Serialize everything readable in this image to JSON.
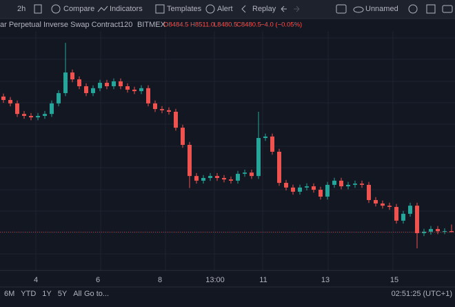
{
  "toolbar": {
    "interval": "2h",
    "compare": "Compare",
    "indicators": "Indicators",
    "templates": "Templates",
    "alert": "Alert",
    "replay": "Replay",
    "layout": "Unnamed"
  },
  "chart_data": {
    "type": "candlestick",
    "title": "ar Perpetual Inverse Swap Contract",
    "interval": "120",
    "exchange": "BITMEX",
    "ohlc_labels": {
      "open": "O8484.5",
      "high": "H8511.0",
      "low": "L8480.5",
      "close": "C8480.5",
      "change": "−4.0 (−0.05%)"
    },
    "categories": [
      null,
      null,
      null,
      null,
      null,
      "4",
      null,
      null,
      null,
      null,
      null,
      null,
      null,
      null,
      "6",
      null,
      null,
      null,
      null,
      null,
      null,
      null,
      null,
      "8",
      null,
      null,
      null,
      null,
      null,
      null,
      null,
      "13:00",
      null,
      null,
      null,
      null,
      null,
      null,
      "11",
      null,
      null,
      null,
      null,
      null,
      null,
      null,
      null,
      "13",
      null,
      null,
      null,
      null,
      null,
      null,
      null,
      null,
      null,
      "15",
      null,
      null,
      null,
      null,
      null,
      null,
      null,
      null
    ],
    "open": [
      9033,
      9019,
      9005,
      8962,
      8954,
      8948,
      8954,
      8962,
      9005,
      9047,
      9131,
      9103,
      9075,
      9047,
      9067,
      9089,
      9075,
      9095,
      9075,
      9061,
      9055,
      9067,
      9005,
      8982,
      8977,
      8971,
      8906,
      8836,
      8709,
      8690,
      8701,
      8709,
      8701,
      8695,
      8690,
      8718,
      8723,
      8709,
      8864,
      8870,
      8808,
      8681,
      8662,
      8645,
      8662,
      8667,
      8653,
      8625,
      8673,
      8690,
      8667,
      8673,
      8678,
      8673,
      8611,
      8597,
      8588,
      8583,
      8527,
      8555,
      8588,
      8476,
      8482,
      8493,
      8484,
      8484.5
    ],
    "high": [
      9045,
      9031,
      9017,
      8974,
      8966,
      8966,
      8974,
      9017,
      9059,
      9252,
      9143,
      9115,
      9087,
      9079,
      9101,
      9101,
      9107,
      9107,
      9087,
      9073,
      9079,
      9079,
      9017,
      8994,
      8989,
      8983,
      8918,
      8848,
      8721,
      8713,
      8721,
      8721,
      8713,
      8707,
      8730,
      8735,
      8735,
      8971,
      8882,
      8882,
      8820,
      8693,
      8674,
      8674,
      8679,
      8679,
      8665,
      8685,
      8702,
      8702,
      8685,
      8690,
      8690,
      8685,
      8623,
      8609,
      8600,
      8595,
      8567,
      8600,
      8600,
      8494,
      8505,
      8505,
      8496,
      8511
    ],
    "low": [
      9007,
      8993,
      8950,
      8942,
      8936,
      8936,
      8942,
      8950,
      8993,
      9035,
      9091,
      9063,
      9035,
      9035,
      9055,
      9063,
      9063,
      9063,
      9049,
      9043,
      9043,
      8993,
      8970,
      8965,
      8959,
      8894,
      8824,
      8660,
      8678,
      8678,
      8689,
      8689,
      8683,
      8678,
      8678,
      8706,
      8697,
      8697,
      8852,
      8796,
      8669,
      8650,
      8633,
      8633,
      8650,
      8641,
      8613,
      8613,
      8661,
      8655,
      8655,
      8661,
      8661,
      8599,
      8585,
      8576,
      8571,
      8515,
      8515,
      8543,
      8414,
      8464,
      8470,
      8472,
      8472,
      8480.5
    ],
    "close": [
      9019,
      9005,
      8962,
      8954,
      8948,
      8954,
      8962,
      9005,
      9047,
      9131,
      9103,
      9075,
      9047,
      9067,
      9089,
      9075,
      9095,
      9075,
      9061,
      9055,
      9067,
      9005,
      8982,
      8977,
      8971,
      8906,
      8836,
      8709,
      8690,
      8701,
      8709,
      8701,
      8695,
      8690,
      8718,
      8723,
      8709,
      8864,
      8870,
      8808,
      8681,
      8662,
      8645,
      8662,
      8667,
      8653,
      8625,
      8673,
      8690,
      8667,
      8673,
      8678,
      8673,
      8611,
      8597,
      8588,
      8583,
      8527,
      8555,
      8588,
      8476,
      8482,
      8493,
      8484,
      8484.5,
      8480.5
    ],
    "up_color": "#26a69a",
    "down_color": "#ef5350",
    "ylim": [
      8400,
      9300
    ]
  },
  "bottom_bar": {
    "ranges": [
      "6M",
      "YTD",
      "1Y",
      "5Y",
      "All"
    ],
    "goto": "Go to...",
    "clock": "02:51:25 (UTC+1)"
  }
}
